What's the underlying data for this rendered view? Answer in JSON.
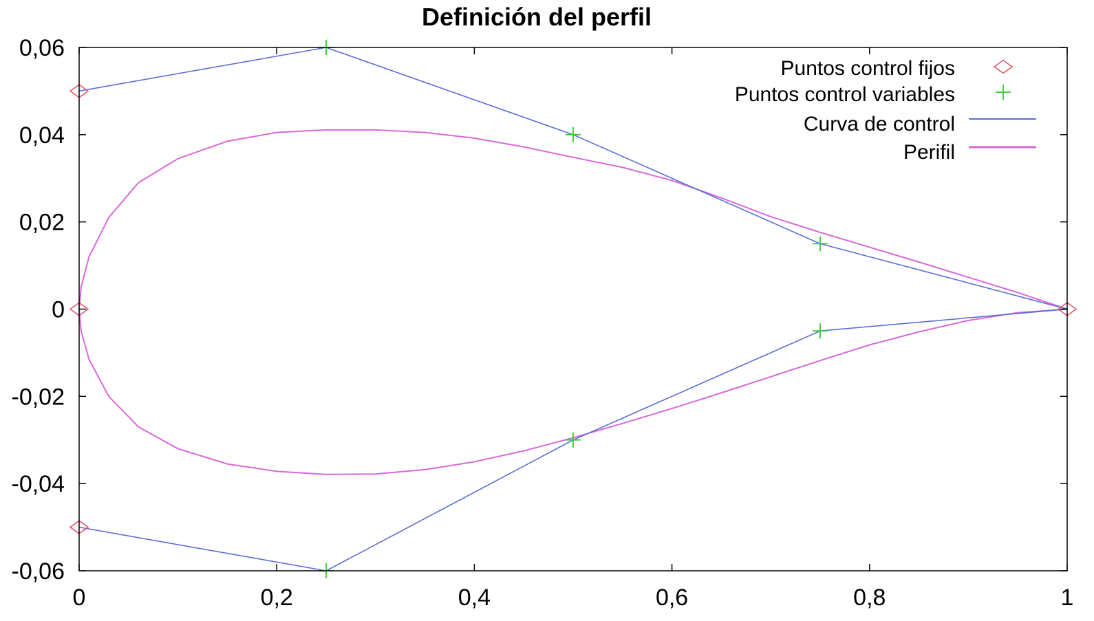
{
  "chart_data": {
    "type": "line",
    "title": "Definición del perfil",
    "xlabel": "",
    "ylabel": "",
    "xlim": [
      0,
      1
    ],
    "ylim": [
      -0.06,
      0.06
    ],
    "grid": false,
    "legend_position": "top-right",
    "x_ticks": [
      {
        "value": 0,
        "label": "0"
      },
      {
        "value": 0.2,
        "label": "0,2"
      },
      {
        "value": 0.4,
        "label": "0,4"
      },
      {
        "value": 0.6,
        "label": "0,6"
      },
      {
        "value": 0.8,
        "label": "0,8"
      },
      {
        "value": 1,
        "label": "1"
      }
    ],
    "y_ticks": [
      {
        "value": 0.06,
        "label": "0,06"
      },
      {
        "value": 0.04,
        "label": "0,04"
      },
      {
        "value": 0.02,
        "label": "0,02"
      },
      {
        "value": 0,
        "label": "0"
      },
      {
        "value": -0.02,
        "label": "-0,02"
      },
      {
        "value": -0.04,
        "label": "-0,04"
      },
      {
        "value": -0.06,
        "label": "-0,06"
      }
    ],
    "series": [
      {
        "name": "Puntos control fijos",
        "kind": "scatter",
        "marker": "diamond",
        "color": "#e05a6a",
        "points": [
          {
            "x": 0,
            "y": 0.05
          },
          {
            "x": 0,
            "y": 0
          },
          {
            "x": 0,
            "y": -0.05
          },
          {
            "x": 1,
            "y": 0
          }
        ]
      },
      {
        "name": "Puntos control variables",
        "kind": "scatter",
        "marker": "plus",
        "color": "#33cc33",
        "points": [
          {
            "x": 0.25,
            "y": 0.06
          },
          {
            "x": 0.5,
            "y": 0.04
          },
          {
            "x": 0.75,
            "y": 0.015
          },
          {
            "x": 0.25,
            "y": -0.06
          },
          {
            "x": 0.5,
            "y": -0.03
          },
          {
            "x": 0.75,
            "y": -0.005
          }
        ]
      },
      {
        "name": "Curva de control",
        "kind": "line",
        "color": "#5a6fd6",
        "segments": [
          [
            {
              "x": 0,
              "y": 0.05
            },
            {
              "x": 0.25,
              "y": 0.06
            },
            {
              "x": 0.5,
              "y": 0.04
            },
            {
              "x": 0.75,
              "y": 0.015
            },
            {
              "x": 1,
              "y": 0
            }
          ],
          [
            {
              "x": 0,
              "y": -0.05
            },
            {
              "x": 0.25,
              "y": -0.06
            },
            {
              "x": 0.5,
              "y": -0.03
            },
            {
              "x": 0.75,
              "y": -0.005
            },
            {
              "x": 1,
              "y": 0
            }
          ]
        ]
      },
      {
        "name": "Perifil",
        "kind": "line",
        "color": "#d868d8",
        "points": [
          {
            "x": 1,
            "y": 0
          },
          {
            "x": 0.95,
            "y": 0.0038
          },
          {
            "x": 0.9,
            "y": 0.0073
          },
          {
            "x": 0.85,
            "y": 0.0108
          },
          {
            "x": 0.8,
            "y": 0.0142
          },
          {
            "x": 0.75,
            "y": 0.0176
          },
          {
            "x": 0.7,
            "y": 0.0212
          },
          {
            "x": 0.65,
            "y": 0.0255
          },
          {
            "x": 0.6,
            "y": 0.0295
          },
          {
            "x": 0.55,
            "y": 0.0325
          },
          {
            "x": 0.5,
            "y": 0.0348
          },
          {
            "x": 0.45,
            "y": 0.0372
          },
          {
            "x": 0.4,
            "y": 0.0392
          },
          {
            "x": 0.35,
            "y": 0.0405
          },
          {
            "x": 0.3,
            "y": 0.0411
          },
          {
            "x": 0.25,
            "y": 0.0411
          },
          {
            "x": 0.2,
            "y": 0.0405
          },
          {
            "x": 0.15,
            "y": 0.0385
          },
          {
            "x": 0.1,
            "y": 0.0345
          },
          {
            "x": 0.06,
            "y": 0.029
          },
          {
            "x": 0.03,
            "y": 0.021
          },
          {
            "x": 0.01,
            "y": 0.012
          },
          {
            "x": 0.002,
            "y": 0.005
          },
          {
            "x": 0,
            "y": 0
          },
          {
            "x": 0.002,
            "y": -0.005
          },
          {
            "x": 0.01,
            "y": -0.0115
          },
          {
            "x": 0.03,
            "y": -0.02
          },
          {
            "x": 0.06,
            "y": -0.027
          },
          {
            "x": 0.1,
            "y": -0.032
          },
          {
            "x": 0.15,
            "y": -0.0355
          },
          {
            "x": 0.2,
            "y": -0.0372
          },
          {
            "x": 0.25,
            "y": -0.0379
          },
          {
            "x": 0.3,
            "y": -0.0378
          },
          {
            "x": 0.35,
            "y": -0.0368
          },
          {
            "x": 0.4,
            "y": -0.035
          },
          {
            "x": 0.45,
            "y": -0.0325
          },
          {
            "x": 0.5,
            "y": -0.0295
          },
          {
            "x": 0.55,
            "y": -0.0262
          },
          {
            "x": 0.6,
            "y": -0.0228
          },
          {
            "x": 0.65,
            "y": -0.0192
          },
          {
            "x": 0.7,
            "y": -0.0155
          },
          {
            "x": 0.75,
            "y": -0.0118
          },
          {
            "x": 0.8,
            "y": -0.0082
          },
          {
            "x": 0.85,
            "y": -0.0052
          },
          {
            "x": 0.9,
            "y": -0.0026
          },
          {
            "x": 0.95,
            "y": -0.0008
          },
          {
            "x": 1,
            "y": 0
          }
        ]
      }
    ]
  }
}
